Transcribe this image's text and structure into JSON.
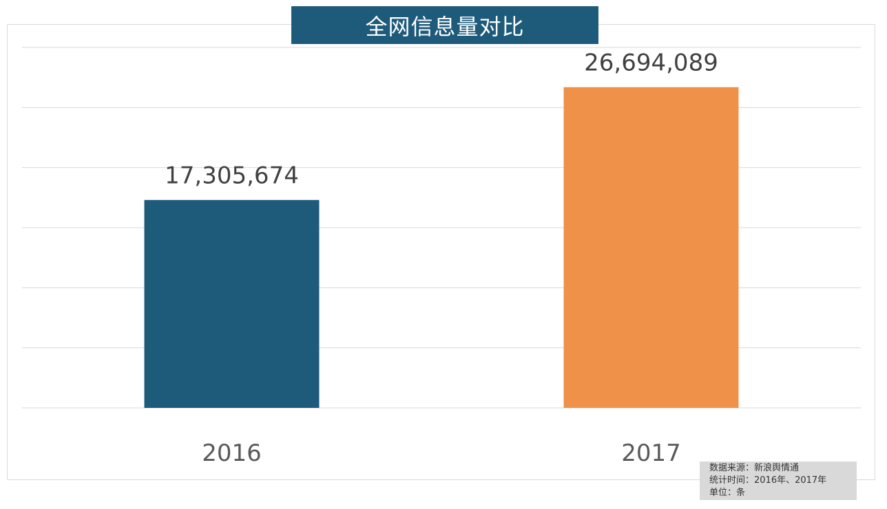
{
  "chart_data": {
    "type": "bar",
    "title": "全网信息量对比",
    "categories": [
      "2016",
      "2017"
    ],
    "values": [
      17305674,
      26694089
    ],
    "data_labels": [
      "17,305,674",
      "26,694,089"
    ],
    "ylim": [
      0,
      30000000
    ],
    "y_gridline_step": 5000000,
    "grid": true,
    "y_tick_labels_shown": false,
    "legend": "none",
    "colors": [
      "#1e5a7a",
      "#f0914a"
    ]
  },
  "note": {
    "source": "数据来源：新浪舆情通",
    "period": "统计时间：2016年、2017年",
    "unit": "单位：条"
  }
}
